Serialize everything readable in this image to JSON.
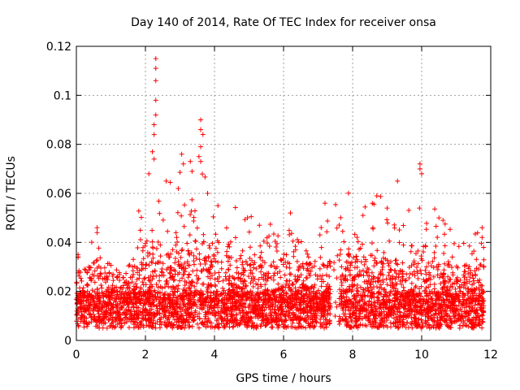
{
  "chart_data": {
    "type": "scatter",
    "title": "Day 140 of 2014, Rate Of TEC Index for receiver onsa",
    "xlabel": "GPS time / hours",
    "ylabel": "ROTI / TECUs",
    "xlim": [
      0,
      12
    ],
    "ylim": [
      0,
      0.12
    ],
    "xticks": [
      0,
      2,
      4,
      6,
      8,
      10,
      12
    ],
    "yticks": [
      0,
      0.02,
      0.04,
      0.06,
      0.08,
      0.1,
      0.12
    ],
    "xtick_labels": [
      "0",
      "2",
      "4",
      "6",
      "8",
      "10",
      "12"
    ],
    "ytick_labels": [
      "0",
      "0.02",
      "0.04",
      "0.06",
      "0.08",
      "0.1",
      "0.12"
    ],
    "grid": true,
    "marker": "+",
    "color": "#ff0000",
    "series": [
      {
        "name": "ROTI",
        "x_range": [
          0,
          11.8
        ],
        "baseline_range": [
          0.005,
          0.02
        ],
        "points": [
          [
            2.3,
            0.115
          ],
          [
            2.3,
            0.111
          ],
          [
            2.3,
            0.106
          ],
          [
            2.3,
            0.098
          ],
          [
            2.3,
            0.092
          ],
          [
            2.25,
            0.088
          ],
          [
            2.25,
            0.084
          ],
          [
            2.2,
            0.077
          ],
          [
            2.25,
            0.074
          ],
          [
            2.1,
            0.068
          ],
          [
            3.6,
            0.09
          ],
          [
            3.6,
            0.086
          ],
          [
            3.6,
            0.079
          ],
          [
            3.55,
            0.075
          ],
          [
            3.6,
            0.073
          ],
          [
            3.05,
            0.076
          ],
          [
            3.1,
            0.072
          ],
          [
            3.3,
            0.073
          ],
          [
            3.35,
            0.069
          ],
          [
            2.6,
            0.065
          ],
          [
            9.95,
            0.072
          ],
          [
            9.95,
            0.07
          ],
          [
            10.0,
            0.068
          ],
          [
            9.3,
            0.065
          ],
          [
            8.7,
            0.059
          ],
          [
            7.2,
            0.056
          ],
          [
            3.8,
            0.06
          ],
          [
            2.95,
            0.062
          ],
          [
            4.1,
            0.055
          ],
          [
            6.2,
            0.052
          ],
          [
            8.3,
            0.051
          ],
          [
            9.0,
            0.054
          ],
          [
            10.5,
            0.05
          ],
          [
            0.6,
            0.046
          ],
          [
            0.6,
            0.044
          ],
          [
            11.75,
            0.046
          ],
          [
            11.75,
            0.042
          ],
          [
            0.05,
            0.035
          ],
          [
            0.05,
            0.034
          ],
          [
            5.3,
            0.047
          ]
        ]
      }
    ]
  }
}
